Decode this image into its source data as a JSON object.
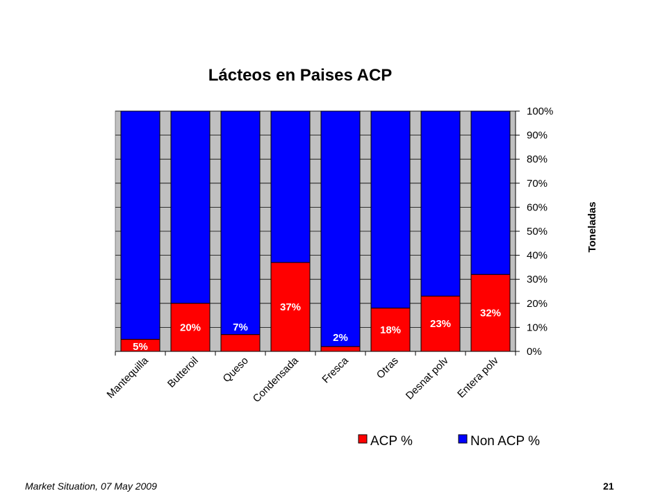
{
  "chart_data": {
    "type": "bar",
    "stacked": true,
    "percent_stacked": true,
    "title": "Lácteos en Paises ACP",
    "ylabel": "Toneladas",
    "xlabel": "",
    "categories": [
      "Mantequilla",
      "Butteroil",
      "Queso",
      "Condensada",
      "Fresca",
      "Otras",
      "Desnat polv",
      "Entera polv"
    ],
    "series": [
      {
        "name": "ACP %",
        "color": "#ff0000",
        "values": [
          5,
          20,
          7,
          37,
          2,
          18,
          23,
          32
        ],
        "data_labels": [
          "5%",
          "20%",
          "7%",
          "37%",
          "2%",
          "18%",
          "23%",
          "32%"
        ]
      },
      {
        "name": "Non ACP %",
        "color": "#0000ff",
        "values": [
          95,
          80,
          93,
          63,
          98,
          82,
          77,
          68
        ]
      }
    ],
    "ylim": [
      0,
      100
    ],
    "y_ticks": [
      "0%",
      "10%",
      "20%",
      "30%",
      "40%",
      "50%",
      "60%",
      "70%",
      "80%",
      "90%",
      "100%"
    ],
    "y_axis_side": "right",
    "plot_background": "#c0c0c0",
    "grid": true,
    "legend_position": "bottom"
  },
  "footer": {
    "left": "Market Situation, 07 May 2009",
    "page_number": "21"
  }
}
